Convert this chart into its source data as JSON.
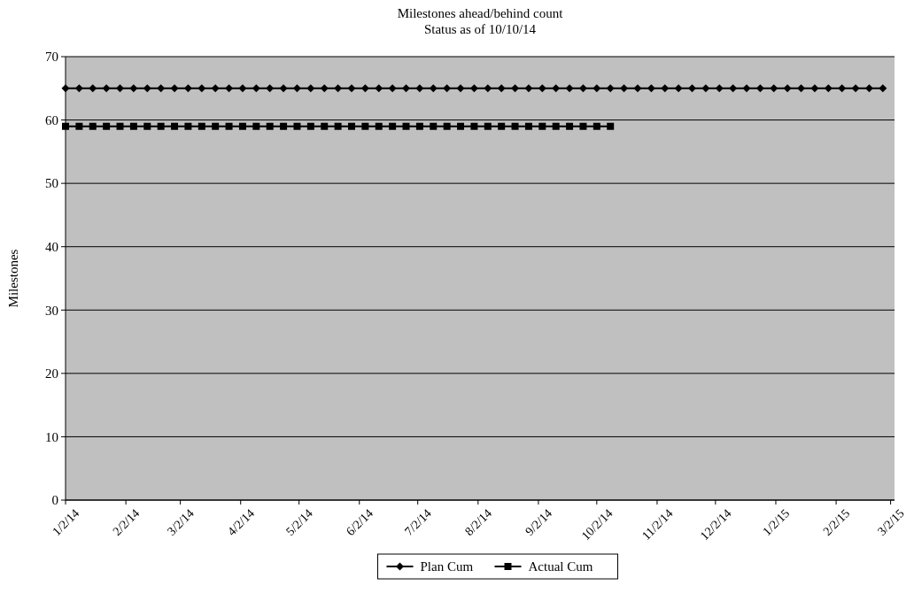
{
  "chart_data": {
    "type": "line",
    "title": "Milestones ahead/behind count",
    "subtitle": "Status as of 10/10/14",
    "ylabel": "Milestones",
    "xlim": [
      "2014-01-02",
      "2015-03-04"
    ],
    "xticks": [
      {
        "value": "2014-01-02",
        "label": "1/2/14"
      },
      {
        "value": "2014-02-02",
        "label": "2/2/14"
      },
      {
        "value": "2014-03-02",
        "label": "3/2/14"
      },
      {
        "value": "2014-04-02",
        "label": "4/2/14"
      },
      {
        "value": "2014-05-02",
        "label": "5/2/14"
      },
      {
        "value": "2014-06-02",
        "label": "6/2/14"
      },
      {
        "value": "2014-07-02",
        "label": "7/2/14"
      },
      {
        "value": "2014-08-02",
        "label": "8/2/14"
      },
      {
        "value": "2014-09-02",
        "label": "9/2/14"
      },
      {
        "value": "2014-10-02",
        "label": "10/2/14"
      },
      {
        "value": "2014-11-02",
        "label": "11/2/14"
      },
      {
        "value": "2014-12-02",
        "label": "12/2/14"
      },
      {
        "value": "2015-01-02",
        "label": "1/2/15"
      },
      {
        "value": "2015-02-02",
        "label": "2/2/15"
      },
      {
        "value": "2015-03-02",
        "label": "3/2/15"
      }
    ],
    "ylim": [
      0,
      70
    ],
    "yticks": [
      0,
      10,
      20,
      30,
      40,
      50,
      60,
      70
    ],
    "grid": "y",
    "legend": "bottom",
    "series": [
      {
        "name": "Plan Cum",
        "color": "#000000",
        "marker": "diamond",
        "x": [
          "2014-01-02",
          "2014-01-09",
          "2014-01-16",
          "2014-01-23",
          "2014-01-30",
          "2014-02-06",
          "2014-02-13",
          "2014-02-20",
          "2014-02-27",
          "2014-03-06",
          "2014-03-13",
          "2014-03-20",
          "2014-03-27",
          "2014-04-03",
          "2014-04-10",
          "2014-04-17",
          "2014-04-24",
          "2014-05-01",
          "2014-05-08",
          "2014-05-15",
          "2014-05-22",
          "2014-05-29",
          "2014-06-05",
          "2014-06-12",
          "2014-06-19",
          "2014-06-26",
          "2014-07-03",
          "2014-07-10",
          "2014-07-17",
          "2014-07-24",
          "2014-07-31",
          "2014-08-07",
          "2014-08-14",
          "2014-08-21",
          "2014-08-28",
          "2014-09-04",
          "2014-09-11",
          "2014-09-18",
          "2014-09-25",
          "2014-10-02",
          "2014-10-09",
          "2014-10-16",
          "2014-10-23",
          "2014-10-30",
          "2014-11-06",
          "2014-11-13",
          "2014-11-20",
          "2014-11-27",
          "2014-12-04",
          "2014-12-11",
          "2014-12-18",
          "2014-12-25",
          "2015-01-01",
          "2015-01-08",
          "2015-01-15",
          "2015-01-22",
          "2015-01-29",
          "2015-02-05",
          "2015-02-12",
          "2015-02-19",
          "2015-02-26"
        ],
        "values": [
          65,
          65,
          65,
          65,
          65,
          65,
          65,
          65,
          65,
          65,
          65,
          65,
          65,
          65,
          65,
          65,
          65,
          65,
          65,
          65,
          65,
          65,
          65,
          65,
          65,
          65,
          65,
          65,
          65,
          65,
          65,
          65,
          65,
          65,
          65,
          65,
          65,
          65,
          65,
          65,
          65,
          65,
          65,
          65,
          65,
          65,
          65,
          65,
          65,
          65,
          65,
          65,
          65,
          65,
          65,
          65,
          65,
          65,
          65,
          65,
          65
        ]
      },
      {
        "name": "Actual Cum",
        "color": "#000000",
        "marker": "square",
        "x": [
          "2014-01-02",
          "2014-01-09",
          "2014-01-16",
          "2014-01-23",
          "2014-01-30",
          "2014-02-06",
          "2014-02-13",
          "2014-02-20",
          "2014-02-27",
          "2014-03-06",
          "2014-03-13",
          "2014-03-20",
          "2014-03-27",
          "2014-04-03",
          "2014-04-10",
          "2014-04-17",
          "2014-04-24",
          "2014-05-01",
          "2014-05-08",
          "2014-05-15",
          "2014-05-22",
          "2014-05-29",
          "2014-06-05",
          "2014-06-12",
          "2014-06-19",
          "2014-06-26",
          "2014-07-03",
          "2014-07-10",
          "2014-07-17",
          "2014-07-24",
          "2014-07-31",
          "2014-08-07",
          "2014-08-14",
          "2014-08-21",
          "2014-08-28",
          "2014-09-04",
          "2014-09-11",
          "2014-09-18",
          "2014-09-25",
          "2014-10-02",
          "2014-10-09"
        ],
        "values": [
          59,
          59,
          59,
          59,
          59,
          59,
          59,
          59,
          59,
          59,
          59,
          59,
          59,
          59,
          59,
          59,
          59,
          59,
          59,
          59,
          59,
          59,
          59,
          59,
          59,
          59,
          59,
          59,
          59,
          59,
          59,
          59,
          59,
          59,
          59,
          59,
          59,
          59,
          59,
          59,
          59
        ]
      }
    ]
  }
}
